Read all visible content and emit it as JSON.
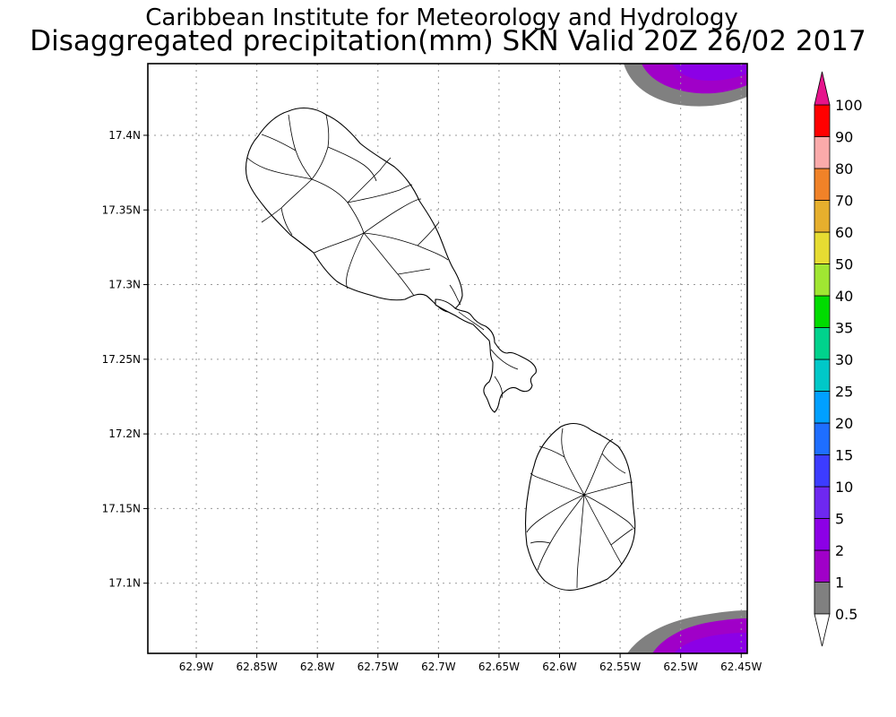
{
  "titles": {
    "line1": "Caribbean Institute for Meteorology and Hydrology",
    "line2": "Disaggregated precipitation(mm) SKN Valid 20Z 26/02 2017"
  },
  "map": {
    "lon_range": [
      -62.94,
      -62.445
    ],
    "lat_range": [
      17.053,
      17.448
    ],
    "x_ticks": [
      {
        "value": -62.9,
        "label": "62.9W"
      },
      {
        "value": -62.85,
        "label": "62.85W"
      },
      {
        "value": -62.8,
        "label": "62.8W"
      },
      {
        "value": -62.75,
        "label": "62.75W"
      },
      {
        "value": -62.7,
        "label": "62.7W"
      },
      {
        "value": -62.65,
        "label": "62.65W"
      },
      {
        "value": -62.6,
        "label": "62.6W"
      },
      {
        "value": -62.55,
        "label": "62.55W"
      },
      {
        "value": -62.5,
        "label": "62.5W"
      },
      {
        "value": -62.45,
        "label": "62.45W"
      }
    ],
    "y_ticks": [
      {
        "value": 17.4,
        "label": "17.4N"
      },
      {
        "value": 17.35,
        "label": "17.35N"
      },
      {
        "value": 17.3,
        "label": "17.3N"
      },
      {
        "value": 17.25,
        "label": "17.25N"
      },
      {
        "value": 17.2,
        "label": "17.2N"
      },
      {
        "value": 17.15,
        "label": "17.15N"
      },
      {
        "value": 17.1,
        "label": "17.1N"
      }
    ],
    "grid": "dotted",
    "islands": [
      "St. Kitts",
      "Nevis"
    ]
  },
  "colorbar": {
    "levels": [
      {
        "label": "0.5",
        "color": "#808080"
      },
      {
        "label": "1",
        "color": "#a000c8"
      },
      {
        "label": "2",
        "color": "#8c00e6"
      },
      {
        "label": "5",
        "color": "#6e28f0"
      },
      {
        "label": "10",
        "color": "#3c3cff"
      },
      {
        "label": "15",
        "color": "#1e6eff"
      },
      {
        "label": "20",
        "color": "#00a0ff"
      },
      {
        "label": "25",
        "color": "#00c8c8"
      },
      {
        "label": "30",
        "color": "#00d28c"
      },
      {
        "label": "35",
        "color": "#00dc00"
      },
      {
        "label": "40",
        "color": "#a0e632"
      },
      {
        "label": "50",
        "color": "#e6dc32"
      },
      {
        "label": "60",
        "color": "#e6af2d"
      },
      {
        "label": "70",
        "color": "#f08228"
      },
      {
        "label": "80",
        "color": "#faaaaa"
      },
      {
        "label": "90",
        "color": "#ff0000"
      },
      {
        "label": "100",
        "color": "#f03c3c"
      }
    ],
    "top_arrow_color": "#e6148c",
    "bottom_arrow_color": "#ffffff"
  },
  "precip_colors": {
    "gray": "#808080",
    "magenta": "#a000c8",
    "purple": "#8c00e6",
    "violet": "#6e28f0"
  }
}
